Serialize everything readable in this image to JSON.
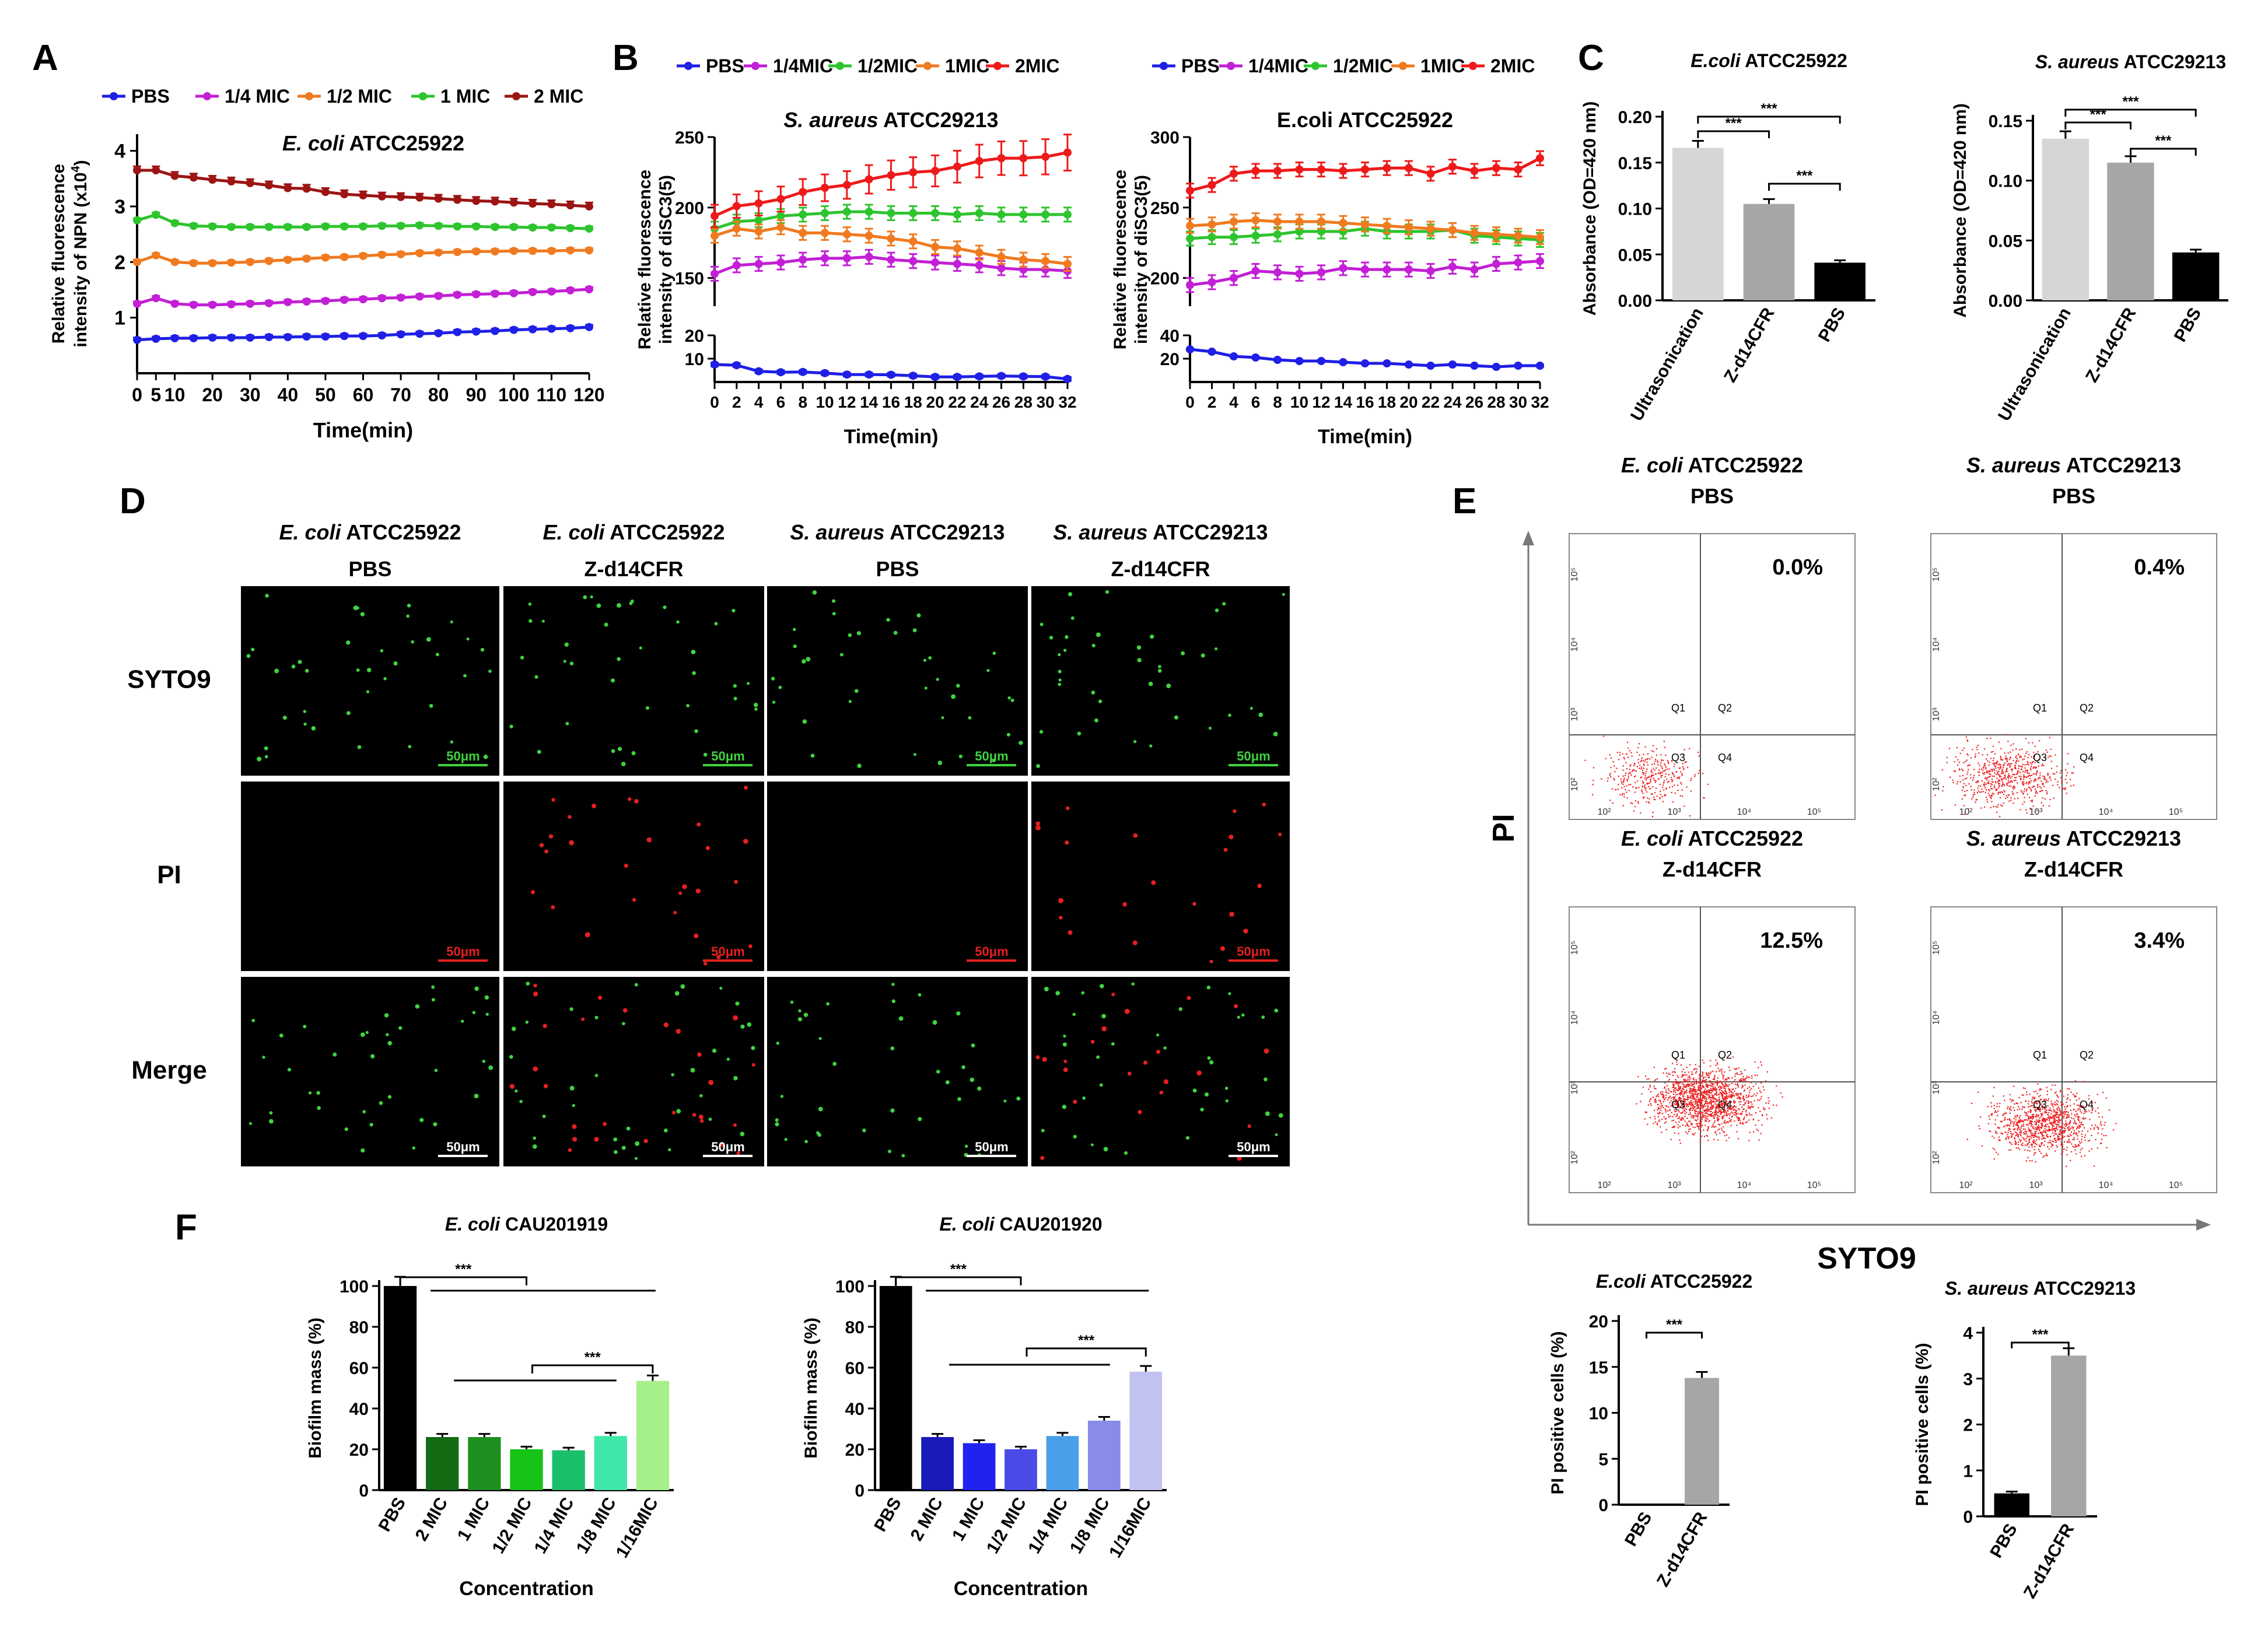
{
  "panels": {
    "A": "A",
    "B": "B",
    "C": "C",
    "D": "D",
    "E": "E",
    "F": "F"
  },
  "colors": {
    "blue": "#1f1fe6",
    "magenta": "#c21fd6",
    "orange": "#f07a20",
    "green": "#2ec42e",
    "darkred": "#9c1414",
    "red": "#ee1a1a",
    "grey": "#8c8c8c"
  },
  "chart_data": [
    {
      "id": "A",
      "type": "line",
      "title_italic": "E. coli",
      "title_rest": " ATCC25922",
      "ylabel_line1": "Relative fluorescence",
      "ylabel_line2": "intensity of NPN (x10",
      "ylabel_sup": "4",
      "ylabel_close": ")",
      "xlabel": "Time(min)",
      "xlim": [
        0,
        120
      ],
      "ylim": [
        0,
        4.3
      ],
      "yticks": [
        1,
        2,
        3,
        4
      ],
      "xticks": [
        0,
        5,
        10,
        20,
        30,
        40,
        50,
        60,
        70,
        80,
        90,
        100,
        110,
        120
      ],
      "x": [
        0,
        5,
        10,
        15,
        20,
        25,
        30,
        35,
        40,
        45,
        50,
        55,
        60,
        65,
        70,
        75,
        80,
        85,
        90,
        95,
        100,
        105,
        110,
        115,
        120
      ],
      "series": [
        {
          "name": "PBS",
          "color": "#1f1fe6",
          "values": [
            0.6,
            0.62,
            0.63,
            0.63,
            0.64,
            0.64,
            0.64,
            0.65,
            0.65,
            0.66,
            0.66,
            0.67,
            0.67,
            0.68,
            0.7,
            0.71,
            0.72,
            0.74,
            0.75,
            0.76,
            0.78,
            0.79,
            0.8,
            0.81,
            0.83
          ]
        },
        {
          "name": "1/4 MIC",
          "color": "#c21fd6",
          "values": [
            1.25,
            1.35,
            1.25,
            1.23,
            1.23,
            1.24,
            1.25,
            1.26,
            1.28,
            1.29,
            1.3,
            1.32,
            1.33,
            1.35,
            1.36,
            1.38,
            1.39,
            1.41,
            1.42,
            1.43,
            1.44,
            1.46,
            1.47,
            1.49,
            1.51
          ]
        },
        {
          "name": "1/2 MIC",
          "color": "#f07a20",
          "values": [
            2.0,
            2.12,
            2.0,
            1.98,
            1.98,
            1.99,
            2.0,
            2.02,
            2.04,
            2.06,
            2.08,
            2.09,
            2.11,
            2.13,
            2.14,
            2.16,
            2.17,
            2.18,
            2.19,
            2.19,
            2.2,
            2.2,
            2.2,
            2.21,
            2.21
          ]
        },
        {
          "name": "1 MIC",
          "color": "#2ec42e",
          "values": [
            2.75,
            2.85,
            2.7,
            2.65,
            2.64,
            2.63,
            2.63,
            2.63,
            2.63,
            2.63,
            2.64,
            2.64,
            2.64,
            2.65,
            2.65,
            2.66,
            2.65,
            2.64,
            2.64,
            2.63,
            2.63,
            2.62,
            2.62,
            2.61,
            2.6
          ]
        },
        {
          "name": "2 MIC",
          "color": "#9c1414",
          "values": [
            3.65,
            3.65,
            3.55,
            3.52,
            3.48,
            3.45,
            3.42,
            3.38,
            3.33,
            3.32,
            3.26,
            3.22,
            3.2,
            3.18,
            3.17,
            3.16,
            3.14,
            3.12,
            3.1,
            3.09,
            3.07,
            3.05,
            3.04,
            3.02,
            3.0
          ]
        }
      ],
      "legend": [
        "PBS",
        "1/4 MIC",
        "1/2 MIC",
        "1 MIC",
        "2 MIC"
      ]
    },
    {
      "id": "B1",
      "type": "line",
      "title_italic": "S. aureus",
      "title_rest": " ATCC29213",
      "ylabel_line1": "Relative fluorescence",
      "ylabel_line2": "intensity of diSC3(5)",
      "xlabel": "Time(min)",
      "xlim": [
        0,
        32
      ],
      "upper_ylim": [
        130,
        250
      ],
      "upper_yticks": [
        150,
        200,
        250
      ],
      "lower_ylim": [
        0,
        20
      ],
      "lower_yticks": [
        10,
        20
      ],
      "xticks": [
        0,
        2,
        4,
        6,
        8,
        10,
        12,
        14,
        16,
        18,
        20,
        22,
        24,
        26,
        28,
        30,
        32
      ],
      "x": [
        0,
        2,
        4,
        6,
        8,
        10,
        12,
        14,
        16,
        18,
        20,
        22,
        24,
        26,
        28,
        30,
        32
      ],
      "series": [
        {
          "name": "PBS",
          "color": "#1f1fe6",
          "values": [
            7.5,
            7.2,
            4.6,
            4.2,
            4.3,
            3.8,
            3.2,
            3.2,
            3.1,
            2.7,
            2.2,
            2.2,
            2.4,
            2.6,
            2.4,
            2.3,
            1.3
          ],
          "axis": "lower"
        },
        {
          "name": "1/4MIC",
          "color": "#c21fd6",
          "values": [
            153,
            159,
            160,
            161,
            163,
            164,
            164,
            165,
            163,
            162,
            161,
            160,
            159,
            157,
            156,
            156,
            155
          ]
        },
        {
          "name": "1/2MIC",
          "color": "#2ec42e",
          "values": [
            185,
            190,
            191,
            194,
            195,
            196,
            197,
            197,
            196,
            196,
            196,
            195,
            196,
            195,
            195,
            195,
            195
          ]
        },
        {
          "name": "1MIC",
          "color": "#f07a20",
          "values": [
            180,
            185,
            183,
            186,
            182,
            182,
            181,
            180,
            178,
            176,
            172,
            171,
            168,
            165,
            163,
            162,
            160
          ]
        },
        {
          "name": "2MIC",
          "color": "#ee1a1a",
          "values": [
            194,
            201,
            203,
            206,
            211,
            214,
            216,
            220,
            223,
            225,
            226,
            229,
            233,
            235,
            235,
            236,
            239
          ]
        }
      ],
      "legend": [
        "PBS",
        "1/4MIC",
        "1/2MIC",
        "1MIC",
        "2MIC"
      ]
    },
    {
      "id": "B2",
      "type": "line",
      "title": "E.coli ATCC25922",
      "ylabel_line1": "Relative fluorescence",
      "ylabel_line2": "intensity of diSC3(5)",
      "xlabel": "Time(min)",
      "xlim": [
        0,
        32
      ],
      "upper_ylim": [
        180,
        300
      ],
      "upper_yticks": [
        200,
        250,
        300
      ],
      "lower_ylim": [
        0,
        40
      ],
      "lower_yticks": [
        20,
        40
      ],
      "xticks": [
        0,
        2,
        4,
        6,
        8,
        10,
        12,
        14,
        16,
        18,
        20,
        22,
        24,
        26,
        28,
        30,
        32
      ],
      "x": [
        0,
        2,
        4,
        6,
        8,
        10,
        12,
        14,
        16,
        18,
        20,
        22,
        24,
        26,
        28,
        30,
        32
      ],
      "series": [
        {
          "name": "PBS",
          "color": "#1f1fe6",
          "values": [
            28,
            26,
            22,
            21,
            19,
            18,
            18,
            17,
            16,
            16,
            15,
            14,
            15,
            14,
            13,
            14,
            14
          ],
          "axis": "lower"
        },
        {
          "name": "1/4MIC",
          "color": "#c21fd6",
          "values": [
            195,
            197,
            200,
            205,
            204,
            203,
            204,
            207,
            206,
            206,
            206,
            205,
            208,
            206,
            210,
            211,
            212
          ]
        },
        {
          "name": "1/2MIC",
          "color": "#2ec42e",
          "values": [
            228,
            229,
            229,
            230,
            231,
            233,
            233,
            233,
            235,
            233,
            233,
            233,
            234,
            230,
            229,
            228,
            227
          ]
        },
        {
          "name": "1MIC",
          "color": "#f07a20",
          "values": [
            237,
            238,
            240,
            241,
            240,
            240,
            240,
            239,
            238,
            237,
            236,
            235,
            234,
            232,
            231,
            230,
            229
          ]
        },
        {
          "name": "2MIC",
          "color": "#ee1a1a",
          "values": [
            262,
            266,
            274,
            276,
            276,
            277,
            277,
            276,
            277,
            278,
            278,
            274,
            279,
            276,
            278,
            277,
            285
          ]
        }
      ],
      "legend": [
        "PBS",
        "1/4MIC",
        "1/2MIC",
        "1MIC",
        "2MIC"
      ]
    },
    {
      "id": "C1",
      "type": "bar",
      "title_italic": "E.coli",
      "title_rest": " ATCC25922",
      "ylabel": "Absorbance (OD=420 nm)",
      "categories": [
        "Ultrasonication",
        "Z-d14CFR",
        "PBS"
      ],
      "values": [
        0.166,
        0.105,
        0.041
      ],
      "colors": [
        "#d6d6d6",
        "#a6a6a8",
        "#000000"
      ],
      "ylim": [
        0,
        0.2
      ],
      "yticks": [
        "0.00",
        "0.05",
        "0.10",
        "0.15",
        "0.20"
      ],
      "significance": [
        "***",
        "***",
        "***"
      ]
    },
    {
      "id": "C2",
      "type": "bar",
      "title_italic": "S. aureus",
      "title_rest": " ATCC29213",
      "ylabel": "Absorbance (OD=420 nm)",
      "categories": [
        "Ultrasonication",
        "Z-d14CFR",
        "PBS"
      ],
      "values": [
        0.135,
        0.115,
        0.04
      ],
      "colors": [
        "#d6d6d6",
        "#a6a6a8",
        "#000000"
      ],
      "ylim": [
        0,
        0.15
      ],
      "yticks": [
        "0.00",
        "0.05",
        "0.10",
        "0.15"
      ],
      "significance": [
        "***",
        "***",
        "***"
      ]
    },
    {
      "id": "E1",
      "type": "bar",
      "title_italic": "E.coli",
      "title_rest": " ATCC25922",
      "ylabel": "PI positive cells (%)",
      "categories": [
        "PBS",
        "Z-d14CFR"
      ],
      "values": [
        0.0,
        13.8
      ],
      "colors": [
        "#000000",
        "#a6a6a8"
      ],
      "ylim": [
        0,
        20
      ],
      "yticks": [
        "0",
        "5",
        "10",
        "15",
        "20"
      ],
      "significance": [
        "***"
      ]
    },
    {
      "id": "E2",
      "type": "bar",
      "title_italic": "S. aureus",
      "title_rest": " ATCC29213",
      "ylabel": "PI positive cells (%)",
      "categories": [
        "PBS",
        "Z-d14CFR"
      ],
      "values": [
        0.5,
        3.5
      ],
      "colors": [
        "#000000",
        "#a6a6a8"
      ],
      "ylim": [
        0,
        4
      ],
      "yticks": [
        "0",
        "1",
        "2",
        "3",
        "4"
      ],
      "significance": [
        "***"
      ]
    },
    {
      "id": "F1",
      "type": "bar",
      "title_italic": "E. coli",
      "title_rest": " CAU201919",
      "ylabel": "Biofilm mass (%)",
      "xlabel": "Concentration",
      "categories": [
        "PBS",
        "2 MIC",
        "1 MIC",
        "1/2 MIC",
        "1/4 MIC",
        "1/8 MIC",
        "1/16MIC"
      ],
      "values": [
        100,
        26,
        26,
        20,
        19.5,
        26.5,
        53.5
      ],
      "colors": [
        "#000000",
        "#136b13",
        "#1f8f1f",
        "#16c416",
        "#19bf6a",
        "#3fe8a8",
        "#a6f08c"
      ],
      "ylim": [
        0,
        100
      ],
      "yticks": [
        "0",
        "20",
        "40",
        "60",
        "80",
        "100"
      ],
      "significance": [
        "***",
        "***"
      ]
    },
    {
      "id": "F2",
      "type": "bar",
      "title_italic": "E. coli",
      "title_rest": " CAU201920",
      "ylabel": "Biofilm mass (%)",
      "xlabel": "Concentration",
      "categories": [
        "PBS",
        "2 MIC",
        "1 MIC",
        "1/2 MIC",
        "1/4 MIC",
        "1/8 MIC",
        "1/16MIC"
      ],
      "values": [
        100,
        26,
        23,
        20,
        26.5,
        34,
        58
      ],
      "colors": [
        "#000000",
        "#1a1ab8",
        "#2222f0",
        "#4a4ae8",
        "#4aa0e8",
        "#8a8ae8",
        "#c2c2f0"
      ],
      "ylim": [
        0,
        100
      ],
      "yticks": [
        "0",
        "20",
        "40",
        "60",
        "80",
        "100"
      ],
      "significance": [
        "***",
        "***"
      ]
    }
  ],
  "microscopy": {
    "col_headers": [
      {
        "italic": "E. coli",
        "rest": " ATCC25922",
        "sub": "PBS"
      },
      {
        "italic": "E. coli",
        "rest": " ATCC25922",
        "sub": "Z-d14CFR"
      },
      {
        "italic": "S. aureus",
        "rest": " ATCC29213",
        "sub": "PBS"
      },
      {
        "italic": "S. aureus",
        "rest": " ATCC29213",
        "sub": "Z-d14CFR"
      }
    ],
    "row_labels": [
      "SYTO9",
      "PI",
      "Merge"
    ],
    "scale": "50μm"
  },
  "flow": {
    "y_label": "PI",
    "x_label": "SYTO9",
    "panels": [
      {
        "italic": "E. coli",
        "rest": " ATCC25922",
        "sub": "PBS",
        "pct": "0.0%",
        "density": 0.25
      },
      {
        "italic": "S. aureus",
        "rest": " ATCC29213",
        "sub": "PBS",
        "pct": "0.4%",
        "density": 0.45
      },
      {
        "italic": "E. coli",
        "rest": " ATCC25922",
        "sub": "Z-d14CFR",
        "pct": "12.5%",
        "density": 1.0
      },
      {
        "italic": "S. aureus",
        "rest": " ATCC29213",
        "sub": "Z-d14CFR",
        "pct": "3.4%",
        "density": 0.7
      }
    ],
    "quadrants": [
      "Q1",
      "Q2",
      "Q3",
      "Q4"
    ],
    "axis_ticks": [
      "10²",
      "10³",
      "10⁴",
      "10⁵"
    ]
  }
}
